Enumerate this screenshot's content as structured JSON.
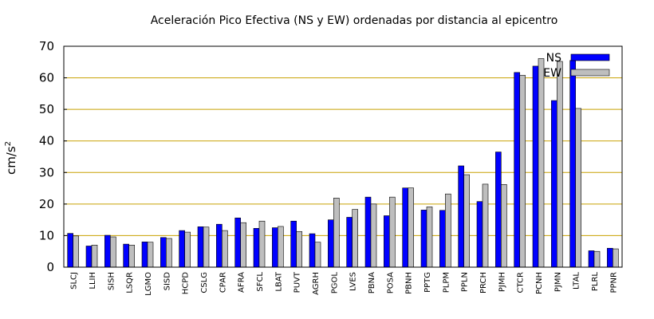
{
  "chart_data": {
    "type": "bar",
    "title": "Aceleración Pico Efectiva (NS y EW) ordenadas por distancia al epicentro",
    "xlabel": "",
    "ylabel": "cm/s",
    "ylabel_sup": "2",
    "ylim": [
      0,
      70
    ],
    "yticks": [
      0,
      10,
      20,
      30,
      40,
      50,
      60,
      70
    ],
    "grid": "horizontal",
    "legend_position": "top-right",
    "categories": [
      "SLCJ",
      "LLIH",
      "SISH",
      "LSQR",
      "LGMO",
      "SISD",
      "HCPD",
      "CSLG",
      "CPAR",
      "AFRA",
      "SFCL",
      "LBAT",
      "PUVT",
      "AGRH",
      "PGOL",
      "LVES",
      "PBNA",
      "POSA",
      "PBNH",
      "PPTG",
      "PLPM",
      "PPLN",
      "PRCH",
      "PJMH",
      "CTCR",
      "PCNH",
      "PJMN",
      "LTAL",
      "PLRL",
      "PPNR"
    ],
    "series": [
      {
        "name": "NS",
        "color": "#0000ff",
        "values": [
          10.7,
          6.7,
          10.1,
          7.3,
          8.0,
          9.4,
          11.6,
          12.8,
          13.6,
          15.6,
          12.3,
          12.5,
          14.6,
          10.6,
          15.0,
          15.8,
          22.2,
          16.3,
          25.1,
          18.1,
          18.0,
          32.1,
          20.8,
          36.5,
          61.7,
          63.7,
          52.8,
          65.5,
          5.2,
          6.0
        ]
      },
      {
        "name": "EW",
        "color": "#bebebe",
        "values": [
          9.9,
          7.0,
          9.6,
          7.0,
          7.9,
          9.1,
          11.1,
          12.7,
          11.6,
          14.1,
          14.6,
          12.9,
          11.3,
          7.9,
          21.9,
          18.3,
          20.0,
          22.2,
          25.1,
          19.1,
          23.2,
          29.3,
          26.3,
          26.2,
          60.8,
          66.1,
          65.2,
          50.3,
          5.0,
          5.8
        ]
      }
    ]
  },
  "colors": {
    "grid": "#c8a000",
    "axis": "#000000",
    "bar_edge": "#000000"
  }
}
